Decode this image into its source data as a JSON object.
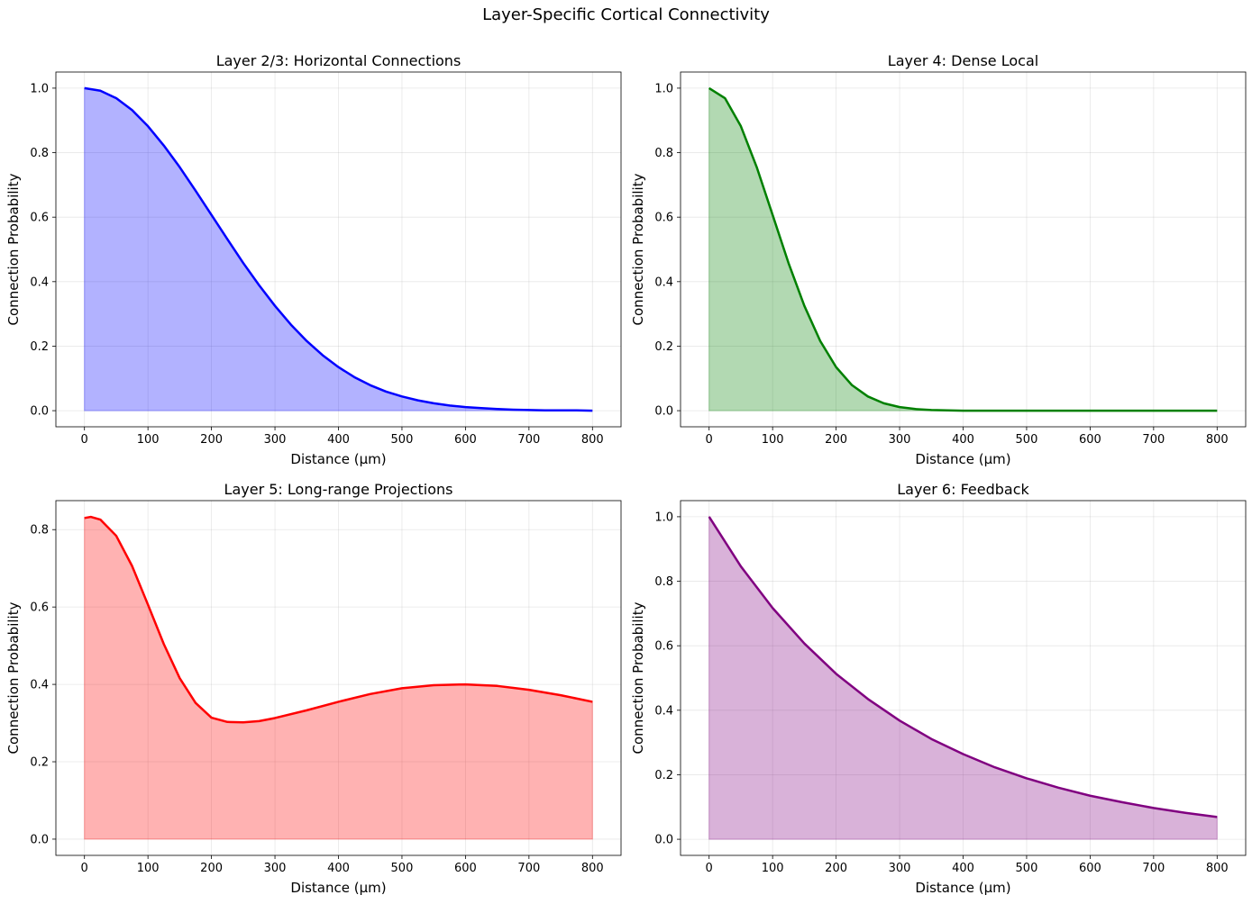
{
  "figure_title": "Layer-Specific Cortical Connectivity",
  "chart_data": [
    {
      "type": "area",
      "title": "Layer 2/3: Horizontal Connections",
      "xlabel": "Distance (μm)",
      "ylabel": "Connection Probability",
      "xlim": [
        -45,
        845
      ],
      "ylim": [
        -0.05,
        1.05
      ],
      "xticks": [
        0,
        100,
        200,
        300,
        400,
        500,
        600,
        700,
        800
      ],
      "yticks": [
        0.0,
        0.2,
        0.4,
        0.6,
        0.8,
        1.0
      ],
      "grid": true,
      "color": "#0000ff",
      "series": [
        {
          "x": [
            0,
            25,
            50,
            75,
            100,
            125,
            150,
            175,
            200,
            225,
            250,
            275,
            300,
            325,
            350,
            375,
            400,
            425,
            450,
            475,
            500,
            525,
            550,
            575,
            600,
            625,
            650,
            675,
            700,
            725,
            750,
            775,
            800
          ],
          "y": [
            1.0,
            0.992,
            0.969,
            0.932,
            0.882,
            0.822,
            0.755,
            0.682,
            0.607,
            0.532,
            0.458,
            0.389,
            0.325,
            0.267,
            0.216,
            0.172,
            0.135,
            0.104,
            0.079,
            0.059,
            0.044,
            0.032,
            0.023,
            0.016,
            0.011,
            0.008,
            0.005,
            0.003,
            0.002,
            0.001,
            0.001,
            0.001,
            0.0
          ]
        }
      ]
    },
    {
      "type": "area",
      "title": "Layer 4: Dense Local",
      "xlabel": "Distance (μm)",
      "ylabel": "Connection Probability",
      "xlim": [
        -45,
        845
      ],
      "ylim": [
        -0.05,
        1.05
      ],
      "xticks": [
        0,
        100,
        200,
        300,
        400,
        500,
        600,
        700,
        800
      ],
      "yticks": [
        0.0,
        0.2,
        0.4,
        0.6,
        0.8,
        1.0
      ],
      "grid": true,
      "color": "#008000",
      "series": [
        {
          "x": [
            0,
            25,
            50,
            75,
            100,
            125,
            150,
            175,
            200,
            225,
            250,
            275,
            300,
            325,
            350,
            375,
            400,
            500,
            600,
            700,
            800
          ],
          "y": [
            1.0,
            0.969,
            0.882,
            0.755,
            0.607,
            0.458,
            0.325,
            0.216,
            0.135,
            0.079,
            0.044,
            0.023,
            0.011,
            0.005,
            0.002,
            0.001,
            0.0,
            0.0,
            0.0,
            0.0,
            0.0
          ]
        }
      ]
    },
    {
      "type": "area",
      "title": "Layer 5: Long-range Projections",
      "xlabel": "Distance (μm)",
      "ylabel": "Connection Probability",
      "xlim": [
        -45,
        845
      ],
      "ylim": [
        -0.042,
        0.875
      ],
      "xticks": [
        0,
        100,
        200,
        300,
        400,
        500,
        600,
        700,
        800
      ],
      "yticks": [
        0.0,
        0.2,
        0.4,
        0.6,
        0.8
      ],
      "grid": true,
      "color": "#ff0000",
      "series": [
        {
          "x": [
            0,
            10,
            25,
            50,
            75,
            100,
            125,
            150,
            175,
            200,
            225,
            250,
            275,
            300,
            350,
            400,
            450,
            500,
            550,
            600,
            650,
            700,
            750,
            800
          ],
          "y": [
            0.83,
            0.833,
            0.826,
            0.784,
            0.706,
            0.606,
            0.504,
            0.416,
            0.352,
            0.314,
            0.303,
            0.302,
            0.305,
            0.313,
            0.333,
            0.355,
            0.375,
            0.39,
            0.398,
            0.4,
            0.396,
            0.386,
            0.372,
            0.355
          ]
        }
      ]
    },
    {
      "type": "area",
      "title": "Layer 6: Feedback",
      "xlabel": "Distance (μm)",
      "ylabel": "Connection Probability",
      "xlim": [
        -45,
        845
      ],
      "ylim": [
        -0.05,
        1.05
      ],
      "xticks": [
        0,
        100,
        200,
        300,
        400,
        500,
        600,
        700,
        800
      ],
      "yticks": [
        0.0,
        0.2,
        0.4,
        0.6,
        0.8,
        1.0
      ],
      "grid": true,
      "color": "#800080",
      "series": [
        {
          "x": [
            0,
            50,
            100,
            150,
            200,
            250,
            300,
            350,
            400,
            450,
            500,
            550,
            600,
            650,
            700,
            750,
            800
          ],
          "y": [
            1.0,
            0.846,
            0.717,
            0.607,
            0.513,
            0.435,
            0.368,
            0.311,
            0.264,
            0.223,
            0.189,
            0.16,
            0.135,
            0.115,
            0.097,
            0.082,
            0.069
          ]
        }
      ]
    }
  ]
}
